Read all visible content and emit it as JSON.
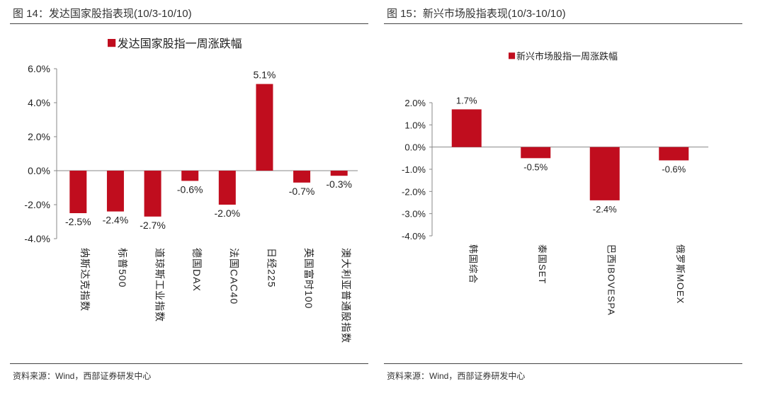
{
  "left": {
    "figure_title": "图 14：发达国家股指表现(10/3-10/10)",
    "source": "资料来源：Wind，西部证券研发中心"
  },
  "right": {
    "figure_title": "图 15：新兴市场股指表现(10/3-10/10)",
    "source": "资料来源：Wind，西部证券研发中心"
  },
  "chart_data": [
    {
      "type": "bar",
      "legend": "发达国家股指一周涨跌幅",
      "legend_position": "top",
      "color": "#C00D1E",
      "categories": [
        "纳斯达克指数",
        "标普500",
        "道琼斯工业指数",
        "德国DAX",
        "法国CAC40",
        "日经225",
        "英国富时100",
        "澳大利亚普通股指数"
      ],
      "values": [
        -2.5,
        -2.4,
        -2.7,
        -0.6,
        -2.0,
        5.1,
        -0.7,
        -0.3
      ],
      "data_labels": [
        "-2.5%",
        "-2.4%",
        "-2.7%",
        "-0.6%",
        "-2.0%",
        "5.1%",
        "-0.7%",
        "-0.3%"
      ],
      "ylim": [
        -4.0,
        6.0
      ],
      "yticks": [
        "6.0%",
        "4.0%",
        "2.0%",
        "0.0%",
        "-2.0%",
        "-4.0%"
      ],
      "grid": false
    },
    {
      "type": "bar",
      "legend": "新兴市场股指一周涨跌幅",
      "legend_position": "top",
      "color": "#C00D1E",
      "categories": [
        "韩国综合",
        "泰国SET",
        "巴西IBOVESPA",
        "俄罗斯MOEX"
      ],
      "values": [
        1.7,
        -0.5,
        -2.4,
        -0.6
      ],
      "data_labels": [
        "1.7%",
        "-0.5%",
        "-2.4%",
        "-0.6%"
      ],
      "ylim": [
        -4.0,
        2.0
      ],
      "yticks": [
        "2.0%",
        "1.0%",
        "0.0%",
        "-1.0%",
        "-2.0%",
        "-3.0%",
        "-4.0%"
      ],
      "grid": false
    }
  ]
}
